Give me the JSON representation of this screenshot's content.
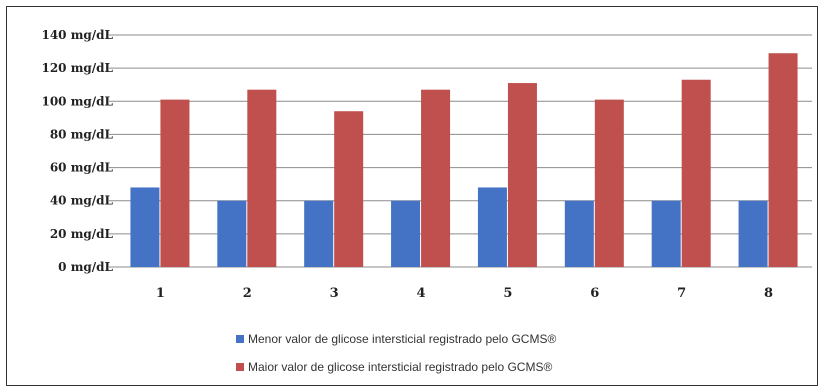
{
  "chart_data": {
    "type": "bar",
    "categories": [
      "1",
      "2",
      "3",
      "4",
      "5",
      "6",
      "7",
      "8"
    ],
    "series": [
      {
        "name": "Menor valor de glicose intersticial registrado pelo GCMS®",
        "color": "#4472C4",
        "values": [
          48,
          40,
          40,
          40,
          48,
          40,
          40,
          40
        ]
      },
      {
        "name": "Maior valor de glicose intersticial registrado pelo GCMS®",
        "color": "#C0504D",
        "values": [
          101,
          107,
          94,
          107,
          111,
          101,
          113,
          129
        ]
      }
    ],
    "y_ticks": [
      "0 mg/dL",
      "20 mg/dL",
      "40 mg/dL",
      "60 mg/dL",
      "80 mg/dL",
      "100 mg/dL",
      "120 mg/dL",
      "140 mg/dL"
    ],
    "ylim": [
      0,
      140
    ],
    "grid": true,
    "legend_position": "bottom"
  }
}
